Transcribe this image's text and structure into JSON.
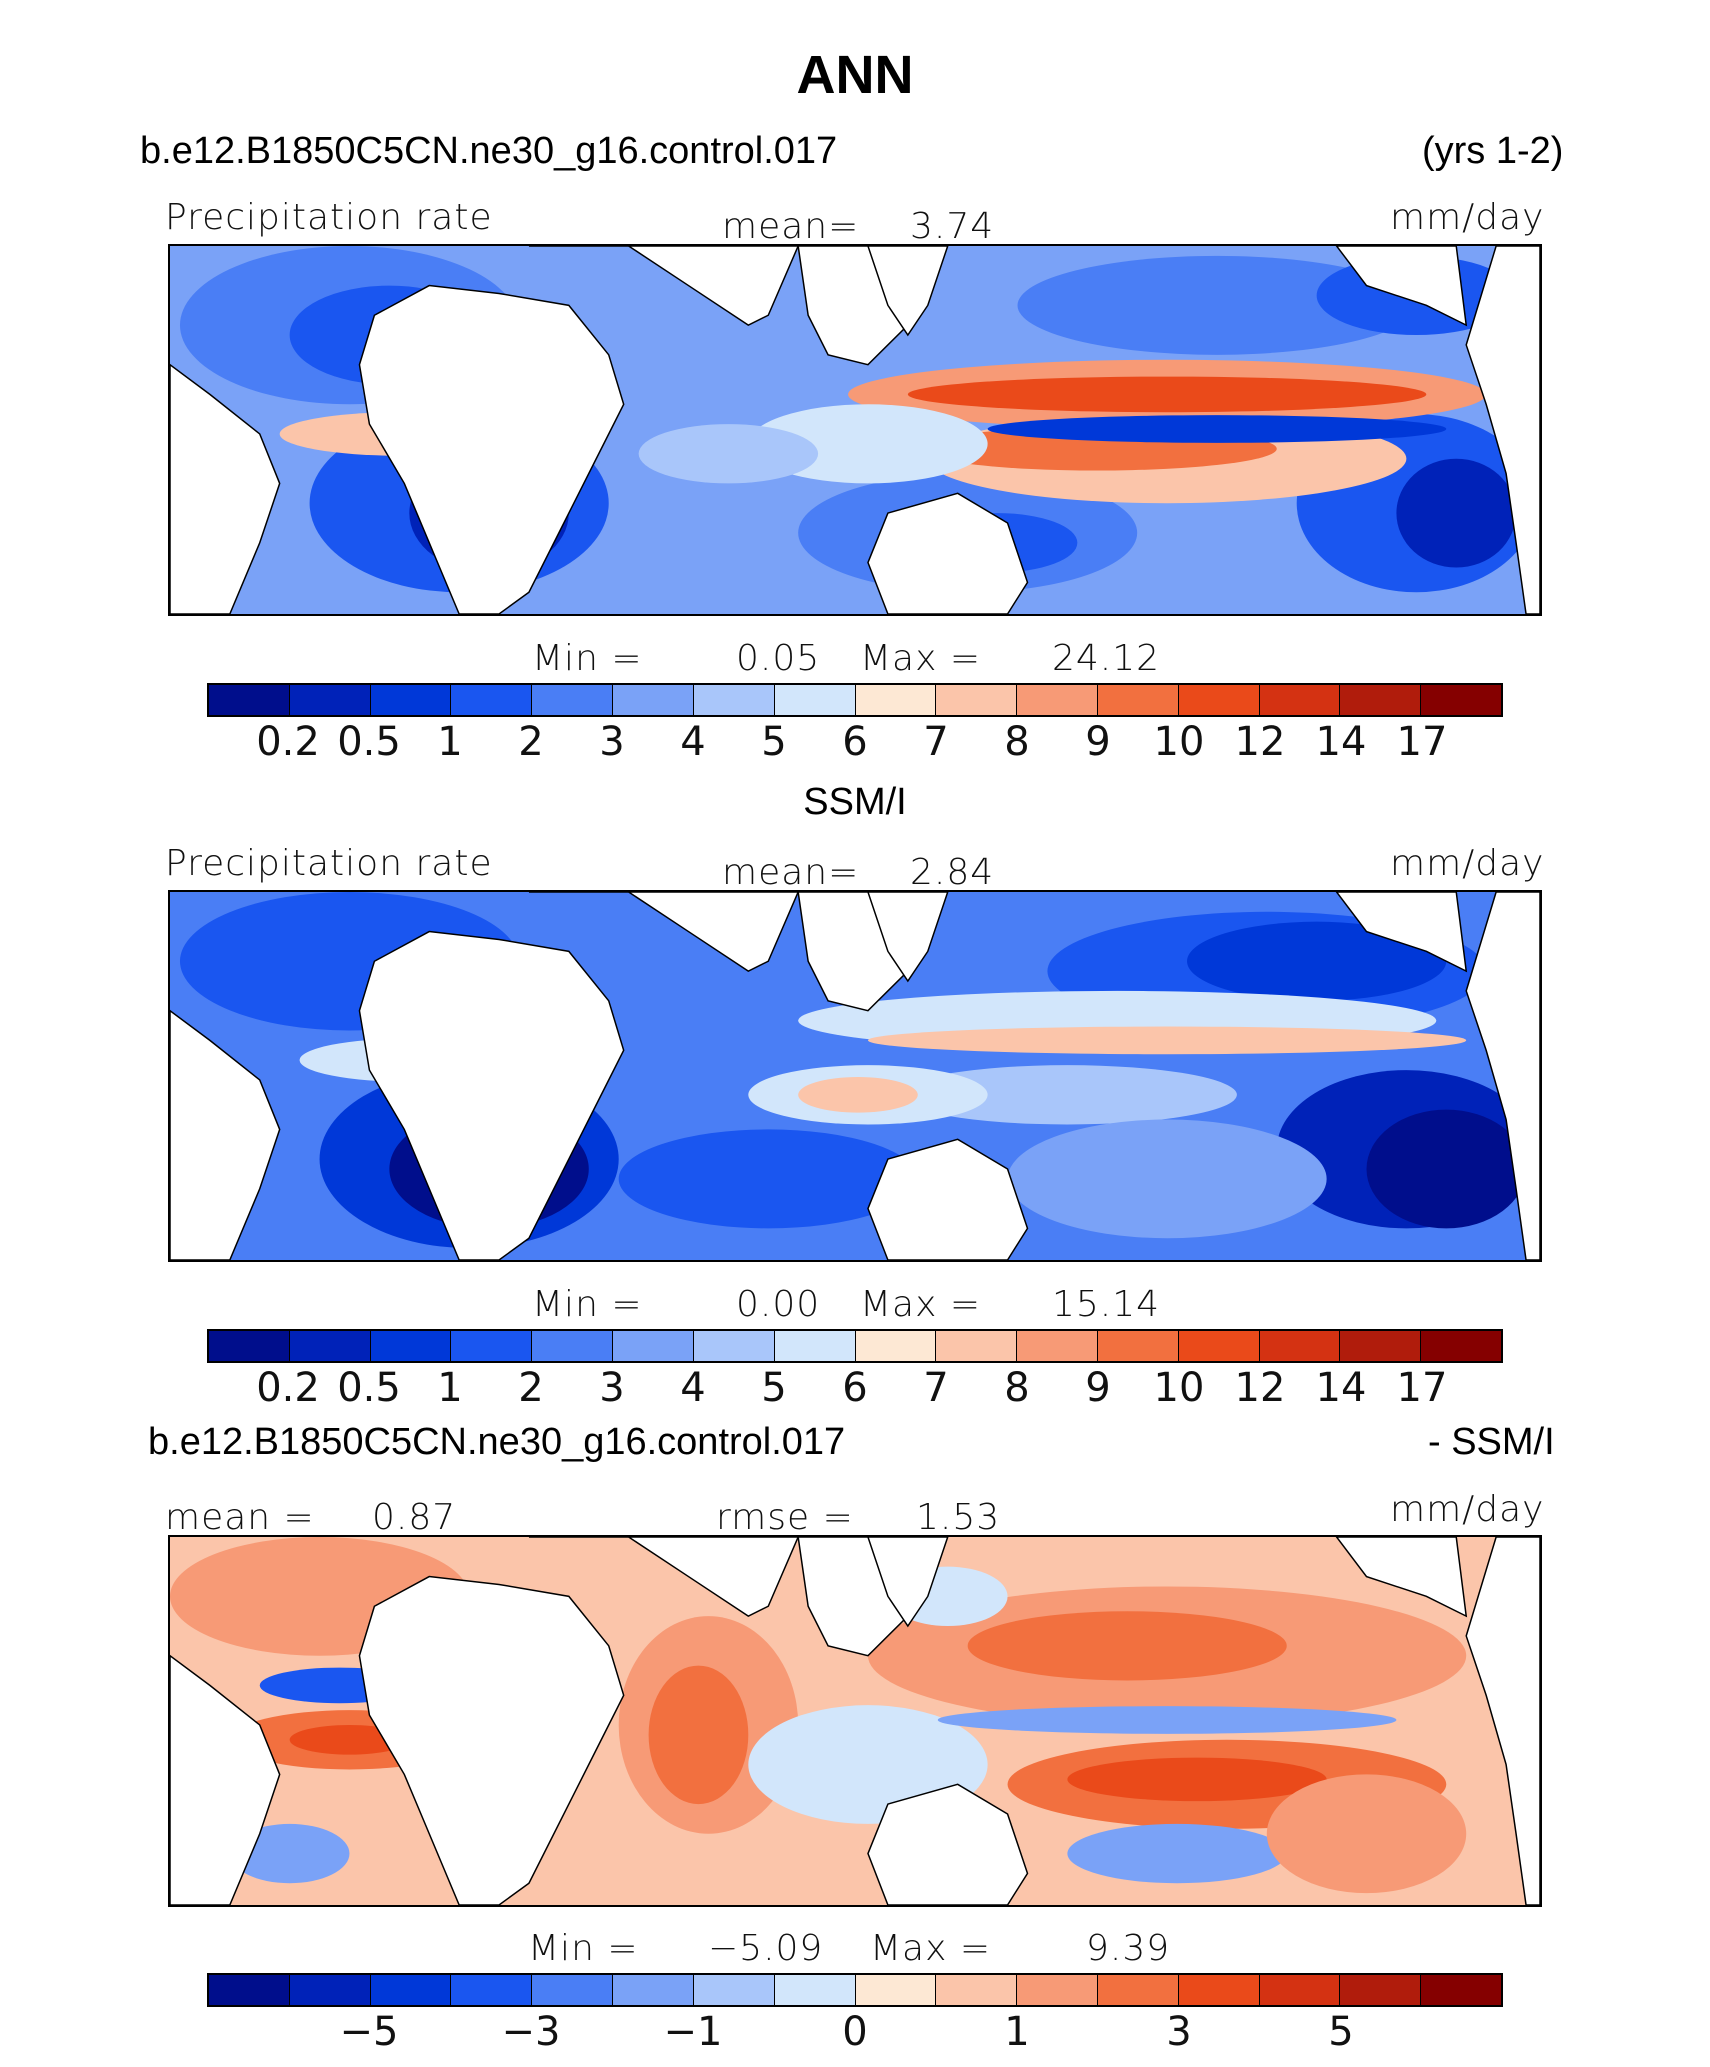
{
  "title": "ANN",
  "panel1": {
    "case": "b.e12.B1850C5CN.ne30_g16.control.017",
    "years": "(yrs 1-2)",
    "variable": "Precipitation rate",
    "mean_label": "mean=",
    "mean_value": "3.74",
    "units": "mm/day",
    "min_label": "Min  =",
    "min_value": "0.05",
    "max_label": "Max  =",
    "max_value": "24.12"
  },
  "panel2": {
    "heading": "SSM/I",
    "variable": "Precipitation rate",
    "mean_label": "mean=",
    "mean_value": "2.84",
    "units": "mm/day",
    "min_label": "Min  =",
    "min_value": "0.00",
    "max_label": "Max  =",
    "max_value": "15.14"
  },
  "panel3": {
    "case": "b.e12.B1850C5CN.ne30_g16.control.017",
    "suffix": "- SSM/I",
    "mean_label": "mean  =",
    "mean_value": "0.87",
    "rmse_label": "rmse  =",
    "rmse_value": "1.53",
    "units": "mm/day",
    "min_label": "Min  =",
    "min_value": "−5.09",
    "max_label": "Max  =",
    "max_value": "9.39"
  },
  "colorbar": {
    "colors": [
      "#000e8c",
      "#0022b8",
      "#0038d8",
      "#1a56f0",
      "#4a7ef5",
      "#7aa2f7",
      "#a9c6fa",
      "#d2e6fb",
      "#fde8d4",
      "#fbc5aa",
      "#f79a76",
      "#f2703f",
      "#ea4a1a",
      "#d43212",
      "#b01c0c",
      "#850000"
    ],
    "ticks_abs": [
      "0.2",
      "0.5",
      "1",
      "2",
      "3",
      "4",
      "5",
      "6",
      "7",
      "8",
      "9",
      "10",
      "12",
      "14",
      "17"
    ],
    "ticks_diff": [
      "−5",
      "−3",
      "−1",
      "0",
      "1",
      "3",
      "5"
    ]
  }
}
